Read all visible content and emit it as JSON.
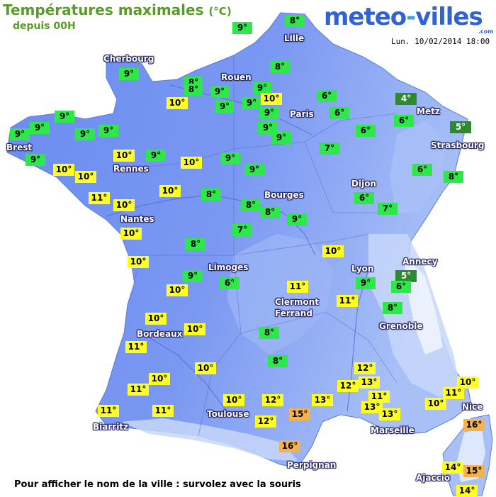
{
  "header": {
    "title": "Températures maximales",
    "title_unit": "(°C)",
    "subtitle": "depuis 00H",
    "brand_part1": "meteo",
    "brand_dash": "-",
    "brand_part2": "villes",
    "brand_com": ".com",
    "datetime": "Lun. 10/02/2014 18:00"
  },
  "footer": {
    "hint": "Pour afficher le nom de la ville : survolez avec la souris"
  },
  "colors": {
    "land": "#6f8ff0",
    "land_light": "#9cb6f6",
    "relief_light": "#dfe9fb",
    "sea": "#ffffff",
    "title_green": "#5a9a2a",
    "cold_dark_green": "#2e8a2e",
    "mild_green": "#2ee84a",
    "warm_yellow": "#ffff22",
    "hot_orange": "#f4b24a"
  },
  "cities": [
    {
      "name": "Lille"
    },
    {
      "name": "Cherbourg"
    },
    {
      "name": "Rouen"
    },
    {
      "name": "Paris"
    },
    {
      "name": "Metz"
    },
    {
      "name": "Strasbourg"
    },
    {
      "name": "Brest"
    },
    {
      "name": "Rennes"
    },
    {
      "name": "Dijon"
    },
    {
      "name": "Bourges"
    },
    {
      "name": "Nantes"
    },
    {
      "name": "Annecy"
    },
    {
      "name": "Limoges"
    },
    {
      "name": "Lyon"
    },
    {
      "name": "Clermont"
    },
    {
      "name": "Ferrand"
    },
    {
      "name": "Grenoble"
    },
    {
      "name": "Bordeaux"
    },
    {
      "name": "Toulouse"
    },
    {
      "name": "Nice"
    },
    {
      "name": "Biarritz"
    },
    {
      "name": "Marseille"
    },
    {
      "name": "Perpignan"
    },
    {
      "name": "Ajaccio"
    }
  ],
  "temperatures": [
    {
      "value": "8°",
      "level": "green"
    },
    {
      "value": "9°",
      "level": "green"
    },
    {
      "value": "9°",
      "level": "green"
    },
    {
      "value": "8°",
      "level": "green"
    },
    {
      "value": "8°",
      "level": "green"
    },
    {
      "value": "8°",
      "level": "green"
    },
    {
      "value": "9°",
      "level": "green"
    },
    {
      "value": "9°",
      "level": "green"
    },
    {
      "value": "10°",
      "level": "yellow"
    },
    {
      "value": "9°",
      "level": "green"
    },
    {
      "value": "9°",
      "level": "green"
    },
    {
      "value": "9°",
      "level": "green"
    },
    {
      "value": "10°",
      "level": "yellow"
    },
    {
      "value": "9°",
      "level": "green"
    },
    {
      "value": "6°",
      "level": "green"
    },
    {
      "value": "4°",
      "level": "dark-green"
    },
    {
      "value": "6°",
      "level": "green"
    },
    {
      "value": "6°",
      "level": "green"
    },
    {
      "value": "9°",
      "level": "green"
    },
    {
      "value": "5°",
      "level": "dark-green"
    },
    {
      "value": "9°",
      "level": "green"
    },
    {
      "value": "9°",
      "level": "green"
    },
    {
      "value": "9°",
      "level": "green"
    },
    {
      "value": "9°",
      "level": "green"
    },
    {
      "value": "9°",
      "level": "green"
    },
    {
      "value": "9°",
      "level": "green"
    },
    {
      "value": "6°",
      "level": "green"
    },
    {
      "value": "9°",
      "level": "green"
    },
    {
      "value": "10°",
      "level": "yellow"
    },
    {
      "value": "9°",
      "level": "green"
    },
    {
      "value": "10°",
      "level": "yellow"
    },
    {
      "value": "7°",
      "level": "green"
    },
    {
      "value": "9°",
      "level": "green"
    },
    {
      "value": "10°",
      "level": "yellow"
    },
    {
      "value": "10°",
      "level": "yellow"
    },
    {
      "value": "9°",
      "level": "green"
    },
    {
      "value": "6°",
      "level": "green"
    },
    {
      "value": "8°",
      "level": "green"
    },
    {
      "value": "11°",
      "level": "yellow"
    },
    {
      "value": "10°",
      "level": "yellow"
    },
    {
      "value": "10°",
      "level": "yellow"
    },
    {
      "value": "8°",
      "level": "green"
    },
    {
      "value": "6°",
      "level": "green"
    },
    {
      "value": "8°",
      "level": "green"
    },
    {
      "value": "8°",
      "level": "green"
    },
    {
      "value": "7°",
      "level": "green"
    },
    {
      "value": "9°",
      "level": "green"
    },
    {
      "value": "10°",
      "level": "yellow"
    },
    {
      "value": "7°",
      "level": "green"
    },
    {
      "value": "8°",
      "level": "green"
    },
    {
      "value": "10°",
      "level": "yellow"
    },
    {
      "value": "10°",
      "level": "yellow"
    },
    {
      "value": "9°",
      "level": "green"
    },
    {
      "value": "6°",
      "level": "green"
    },
    {
      "value": "11°",
      "level": "yellow"
    },
    {
      "value": "5°",
      "level": "dark-green"
    },
    {
      "value": "9°",
      "level": "green"
    },
    {
      "value": "6°",
      "level": "green"
    },
    {
      "value": "11°",
      "level": "yellow"
    },
    {
      "value": "8°",
      "level": "green"
    },
    {
      "value": "10°",
      "level": "yellow"
    },
    {
      "value": "10°",
      "level": "yellow"
    },
    {
      "value": "11°",
      "level": "yellow"
    },
    {
      "value": "8°",
      "level": "green"
    },
    {
      "value": "8°",
      "level": "green"
    },
    {
      "value": "10°",
      "level": "yellow"
    },
    {
      "value": "10°",
      "level": "yellow"
    },
    {
      "value": "12°",
      "level": "yellow"
    },
    {
      "value": "12°",
      "level": "yellow"
    },
    {
      "value": "13°",
      "level": "yellow"
    },
    {
      "value": "10°",
      "level": "yellow"
    },
    {
      "value": "11°",
      "level": "yellow"
    },
    {
      "value": "11°",
      "level": "yellow"
    },
    {
      "value": "11°",
      "level": "yellow"
    },
    {
      "value": "10°",
      "level": "yellow"
    },
    {
      "value": "10°",
      "level": "yellow"
    },
    {
      "value": "13°",
      "level": "yellow"
    },
    {
      "value": "13°",
      "level": "yellow"
    },
    {
      "value": "10°",
      "level": "yellow"
    },
    {
      "value": "11°",
      "level": "yellow"
    },
    {
      "value": "15°",
      "level": "orange"
    },
    {
      "value": "13°",
      "level": "yellow"
    },
    {
      "value": "12°",
      "level": "yellow"
    },
    {
      "value": "11°",
      "level": "yellow"
    },
    {
      "value": "12°",
      "level": "yellow"
    },
    {
      "value": "16°",
      "level": "orange"
    },
    {
      "value": "16°",
      "level": "orange"
    },
    {
      "value": "14°",
      "level": "yellow"
    },
    {
      "value": "15°",
      "level": "orange"
    },
    {
      "value": "14°",
      "level": "yellow"
    }
  ]
}
